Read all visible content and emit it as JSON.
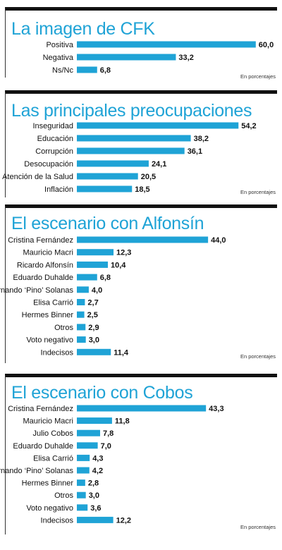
{
  "colors": {
    "accent": "#1fa3d6",
    "rule": "#111111"
  },
  "chart_data": [
    {
      "type": "bar",
      "orientation": "horizontal",
      "title": "La imagen de CFK",
      "categories": [
        "Positiva",
        "Negativa",
        "Ns/Nc"
      ],
      "values": [
        60.0,
        33.2,
        6.8
      ],
      "value_labels": [
        "60,0",
        "33,2",
        "6,8"
      ],
      "note": "En porcentajes"
    },
    {
      "type": "bar",
      "orientation": "horizontal",
      "title": "Las principales preocupaciones",
      "categories": [
        "Inseguridad",
        "Educación",
        "Corrupción",
        "Desocupación",
        "Atención de la Salud",
        "Inflación"
      ],
      "values": [
        54.2,
        38.2,
        36.1,
        24.1,
        20.5,
        18.5
      ],
      "value_labels": [
        "54,2",
        "38,2",
        "36,1",
        "24,1",
        "20,5",
        "18,5"
      ],
      "note": "En porcentajes"
    },
    {
      "type": "bar",
      "orientation": "horizontal",
      "title": "El escenario con Alfonsín",
      "categories": [
        "Cristina Fernández",
        "Mauricio Macri",
        "Ricardo Alfonsín",
        "Eduardo Duhalde",
        "Fernando ‘Pino’ Solanas",
        "Elisa Carrió",
        "Hermes Binner",
        "Otros",
        "Voto negativo",
        "Indecisos"
      ],
      "values": [
        44.0,
        12.3,
        10.4,
        6.8,
        4.0,
        2.7,
        2.5,
        2.9,
        3.0,
        11.4
      ],
      "value_labels": [
        "44,0",
        "12,3",
        "10,4",
        "6,8",
        "4,0",
        "2,7",
        "2,5",
        "2,9",
        "3,0",
        "11,4"
      ],
      "note": "En porcentajes"
    },
    {
      "type": "bar",
      "orientation": "horizontal",
      "title": "El escenario con Cobos",
      "categories": [
        "Cristina Fernández",
        "Mauricio Macri",
        "Julio Cobos",
        "Eduardo Duhalde",
        "Elisa Carrió",
        "Fernando ‘Pino’ Solanas",
        "Hermes Binner",
        "Otros",
        "Voto negativo",
        "Indecisos"
      ],
      "values": [
        43.3,
        11.8,
        7.8,
        7.0,
        4.3,
        4.2,
        2.8,
        3.0,
        3.6,
        12.2
      ],
      "value_labels": [
        "43,3",
        "11,8",
        "7,8",
        "7,0",
        "4,3",
        "4,2",
        "2,8",
        "3,0",
        "3,6",
        "12,2"
      ],
      "note": "En porcentajes"
    }
  ]
}
